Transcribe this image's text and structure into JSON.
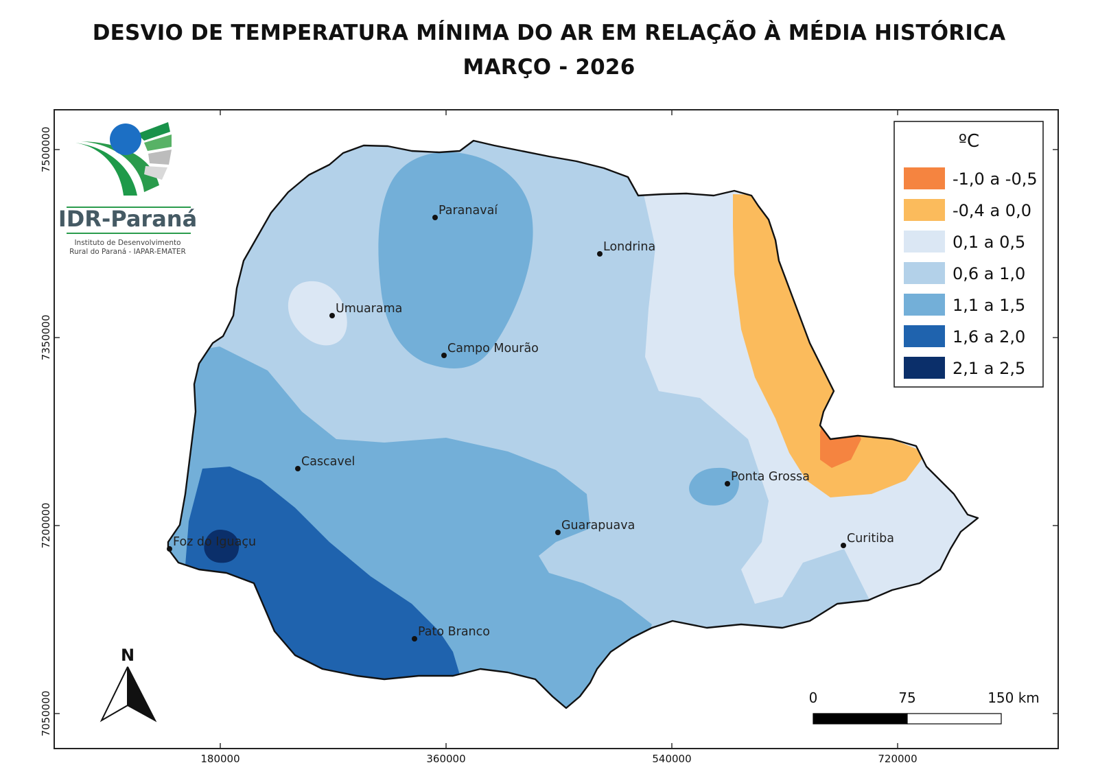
{
  "title": {
    "line1": "DESVIO DE TEMPERATURA MÍNIMA DO AR EM RELAÇÃO À MÉDIA HISTÓRICA",
    "line2": "MARÇO - 2026"
  },
  "logo": {
    "name": "IDR-Paraná",
    "subtitle_line1": "Instituto de Desenvolvimento",
    "subtitle_line2": "Rural do Paraná - IAPAR-EMATER"
  },
  "legend": {
    "title": "ºC",
    "classes": [
      {
        "label": "-1,0 a -0,5",
        "color": "#f58440"
      },
      {
        "label": "-0,4 a 0,0",
        "color": "#fbbb5c"
      },
      {
        "label": "0,1 a 0,5",
        "color": "#dbe7f4"
      },
      {
        "label": "0,6 a 1,0",
        "color": "#b3d1e9"
      },
      {
        "label": "1,1 a 1,5",
        "color": "#73afd8"
      },
      {
        "label": "1,6 a 2,0",
        "color": "#1f63ae"
      },
      {
        "label": "2,1 a 2,5",
        "color": "#0b2f6a"
      }
    ]
  },
  "cities": [
    {
      "name": "Paranavaí"
    },
    {
      "name": "Londrina"
    },
    {
      "name": "Umuarama"
    },
    {
      "name": "Campo Mourão"
    },
    {
      "name": "Cascavel"
    },
    {
      "name": "Ponta Grossa"
    },
    {
      "name": "Guarapuava"
    },
    {
      "name": "Curitiba"
    },
    {
      "name": "Foz do Iguaçu"
    },
    {
      "name": "Pato Branco"
    }
  ],
  "axes": {
    "x_ticks": [
      "180000",
      "360000",
      "540000",
      "720000"
    ],
    "y_ticks": [
      "7500000",
      "7350000",
      "7200000",
      "7050000"
    ]
  },
  "north_arrow": {
    "label": "N"
  },
  "scale_bar": {
    "labels": [
      "0",
      "75",
      "150 km"
    ]
  }
}
